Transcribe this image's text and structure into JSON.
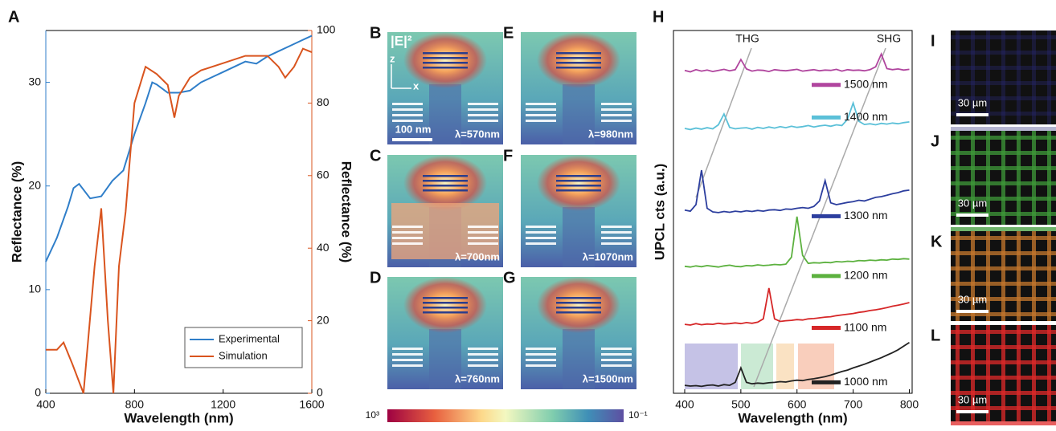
{
  "chart_data": [
    {
      "type": "line",
      "letter": "A",
      "xlabel": "Wavelength (nm)",
      "ylabel": "Reflectance (%)",
      "y2label": "Reflectance (%)",
      "xlim": [
        400,
        1600
      ],
      "xticks": [
        400,
        800,
        1200,
        1600
      ],
      "ylim": [
        0,
        35
      ],
      "yticks": [
        0,
        10,
        20,
        30
      ],
      "y2lim": [
        0,
        100
      ],
      "y2ticks": [
        0,
        20,
        40,
        60,
        80,
        100
      ],
      "legend": "lower right",
      "series": [
        {
          "name": "Experimental",
          "color": "#2f7ec9",
          "axis": "y",
          "x": [
            400,
            450,
            500,
            525,
            550,
            600,
            650,
            700,
            750,
            800,
            850,
            880,
            900,
            950,
            1000,
            1050,
            1100,
            1150,
            1200,
            1250,
            1300,
            1350,
            1400,
            1450,
            1500,
            1550,
            1600
          ],
          "values": [
            12.7,
            15,
            18,
            19.8,
            20.2,
            18.8,
            19,
            20.5,
            21.5,
            25,
            28,
            30,
            29.8,
            29,
            29,
            29.2,
            30,
            30.5,
            31,
            31.5,
            32,
            31.8,
            32.5,
            33,
            33.5,
            34,
            34.5
          ]
        },
        {
          "name": "Simulation",
          "color": "#d9541e",
          "axis": "y2",
          "x": [
            400,
            450,
            480,
            520,
            570,
            620,
            650,
            680,
            705,
            730,
            760,
            800,
            850,
            900,
            950,
            980,
            1000,
            1050,
            1100,
            1200,
            1300,
            1400,
            1450,
            1480,
            1520,
            1560,
            1600
          ],
          "values": [
            12,
            12,
            14,
            8,
            0,
            35,
            51,
            20,
            0,
            35,
            50,
            80,
            90,
            88,
            85,
            76,
            82,
            87,
            89,
            91,
            93,
            93,
            90,
            87,
            90,
            95,
            94
          ]
        }
      ]
    },
    {
      "type": "line",
      "letter": "H",
      "xlabel": "Wavelength (nm)",
      "ylabel": "UPCL cts (a.u.)",
      "xlim": [
        380,
        805
      ],
      "xticks": [
        400,
        500,
        600,
        700,
        800
      ],
      "ylim": [
        0,
        100
      ],
      "annotations": [
        "THG",
        "SHG"
      ],
      "x": [
        400,
        410,
        420,
        430,
        440,
        450,
        460,
        470,
        480,
        490,
        500,
        510,
        520,
        530,
        540,
        550,
        560,
        570,
        580,
        590,
        600,
        610,
        620,
        630,
        640,
        650,
        660,
        670,
        680,
        690,
        700,
        710,
        720,
        730,
        740,
        750,
        760,
        770,
        780,
        790,
        800
      ],
      "series": [
        {
          "name": "1500 nm",
          "color": "#b0459e",
          "values": [
            89,
            88.6,
            89.2,
            88.8,
            89.1,
            88.7,
            89,
            89.3,
            88.9,
            89.2,
            92,
            89.4,
            88.8,
            89.1,
            89,
            88.7,
            89.2,
            89,
            88.9,
            89.1,
            89.3,
            88.8,
            89,
            89.2,
            88.9,
            89.1,
            89,
            89.3,
            88.8,
            89.2,
            89,
            89.1,
            88.9,
            89.2,
            90,
            93.5,
            89.5,
            89.2,
            89.4,
            89.1,
            89.3
          ]
        },
        {
          "name": "1400 nm",
          "color": "#5bc0d8",
          "values": [
            73,
            72.7,
            73.1,
            72.8,
            73.2,
            72.9,
            74,
            77,
            73.3,
            72.9,
            73.1,
            73.2,
            72.8,
            73.3,
            73,
            73.4,
            73.1,
            73.5,
            73.2,
            73.6,
            73.3,
            73.5,
            73.8,
            73.4,
            73.7,
            73.9,
            73.6,
            74,
            73.8,
            75.5,
            80,
            75,
            74.1,
            74.3,
            74,
            74.4,
            74.2,
            74.5,
            74.3,
            74.6,
            74.8
          ]
        },
        {
          "name": "1300 nm",
          "color": "#2c3e9e",
          "values": [
            50.5,
            50.2,
            52,
            61.5,
            51,
            50,
            49.8,
            50.1,
            49.9,
            50.2,
            50,
            50.3,
            50.1,
            50.4,
            50.2,
            50.5,
            50.6,
            50.4,
            50.8,
            50.7,
            51,
            51.2,
            51,
            51.5,
            53,
            58.6,
            52.5,
            52,
            52.3,
            52.6,
            52.8,
            53.2,
            53,
            53.5,
            54,
            54.2,
            54.6,
            55,
            55.3,
            55.8,
            56
          ]
        },
        {
          "name": "1200 nm",
          "color": "#5cb13f",
          "values": [
            35,
            34.8,
            35.1,
            34.9,
            35.2,
            35,
            34.8,
            35.1,
            35.3,
            35,
            34.9,
            35.2,
            35.1,
            35.4,
            35.2,
            35.3,
            35.5,
            35.4,
            35.6,
            37.5,
            48.7,
            38,
            35.8,
            36,
            35.9,
            36.1,
            36,
            36.3,
            36.2,
            36.4,
            36.3,
            36.6,
            36.5,
            36.7,
            36.6,
            36.8,
            36.7,
            37,
            36.9,
            37.1,
            37
          ]
        },
        {
          "name": "1100 nm",
          "color": "#d62728",
          "values": [
            19,
            18.8,
            19.2,
            18.9,
            19.1,
            19,
            19.3,
            19.1,
            19.2,
            19.4,
            19.2,
            19.5,
            19.3,
            19.6,
            20.5,
            29,
            20.5,
            19.8,
            20,
            20.1,
            20.3,
            20.2,
            20.5,
            20.6,
            20.8,
            21,
            21.1,
            21.4,
            21.6,
            21.8,
            22,
            22.3,
            22.5,
            22.8,
            23,
            23.3,
            23.6,
            24,
            24.3,
            24.6,
            25
          ]
        },
        {
          "name": "1000 nm",
          "color": "#222222",
          "values": [
            2.2,
            2,
            2.1,
            1.9,
            2.2,
            2.3,
            2,
            2.4,
            2.2,
            3,
            7,
            3,
            2.6,
            2.8,
            2.7,
            2.9,
            3,
            3.2,
            3.1,
            3.4,
            3.6,
            3.5,
            3.8,
            4,
            4.3,
            4.6,
            5,
            5.5,
            6,
            6.4,
            7,
            7.5,
            8,
            8.6,
            9.2,
            9.8,
            10.5,
            11.2,
            12,
            13,
            14
          ]
        }
      ]
    }
  ],
  "field_maps": {
    "field": "|E|²",
    "z_axis": "z",
    "x_axis": "x",
    "scale_bar": "100 nm",
    "panels": [
      {
        "letter": "B",
        "wavelength": "λ=570nm"
      },
      {
        "letter": "E",
        "wavelength": "λ=980nm"
      },
      {
        "letter": "C",
        "wavelength": "λ=700nm"
      },
      {
        "letter": "F",
        "wavelength": "λ=1070nm"
      },
      {
        "letter": "D",
        "wavelength": "λ=760nm"
      },
      {
        "letter": "G",
        "wavelength": "λ=1500nm"
      }
    ],
    "colorbar": {
      "max": "10³",
      "min": "10⁻¹"
    }
  },
  "micrographs": [
    {
      "letter": "I",
      "scale_bar": "30 µm",
      "color": "#2a2a7a"
    },
    {
      "letter": "J",
      "scale_bar": "30 µm",
      "color": "#3f9a3a"
    },
    {
      "letter": "K",
      "scale_bar": "30 µm",
      "color": "#c5782e"
    },
    {
      "letter": "L",
      "scale_bar": "30 µm",
      "color": "#e02a2a"
    }
  ]
}
